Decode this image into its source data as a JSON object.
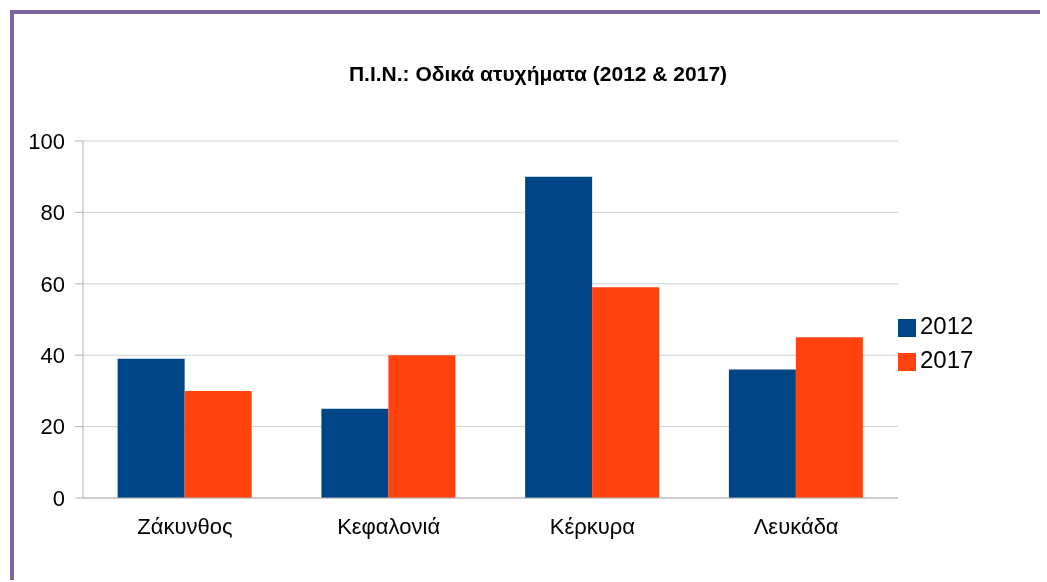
{
  "chart_data": {
    "type": "bar",
    "title": "Π.Ι.Ν.: Οδικά ατυχήματα (2012 & 2017)",
    "categories": [
      "Ζάκυνθος",
      "Κεφαλονιά",
      "Κέρκυρα",
      "Λευκάδα"
    ],
    "series": [
      {
        "name": "2012",
        "color": "#004586",
        "values": [
          39,
          25,
          90,
          36
        ]
      },
      {
        "name": "2017",
        "color": "#ff420e",
        "values": [
          30,
          40,
          59,
          45
        ]
      }
    ],
    "ylim": [
      0,
      100
    ],
    "yticks": [
      0,
      20,
      40,
      60,
      80,
      100
    ],
    "grid": "y",
    "legend": "right"
  }
}
